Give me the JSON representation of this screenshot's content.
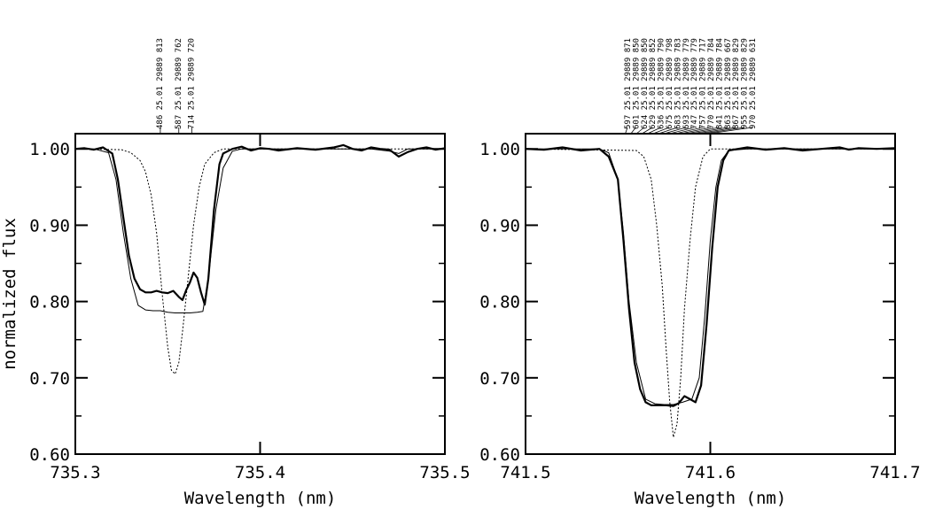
{
  "ylabel": "normalized flux",
  "chart_data": [
    {
      "type": "line",
      "xlabel": "Wavelength (nm)",
      "ylabel": "normalized flux",
      "xlim": [
        735.3,
        735.5
      ],
      "ylim": [
        0.6,
        1.02
      ],
      "xticks": [
        "735.3",
        "735.4",
        "735.5"
      ],
      "yticks": [
        "0.60",
        "0.70",
        "0.80",
        "0.90",
        "1.00"
      ],
      "series": [
        {
          "style": "thick",
          "x": [
            735.3,
            735.305,
            735.31,
            735.315,
            735.32,
            735.323,
            735.326,
            735.329,
            735.332,
            735.335,
            735.338,
            735.341,
            735.344,
            735.347,
            735.35,
            735.353,
            735.356,
            735.358,
            735.36,
            735.362,
            735.364,
            735.366,
            735.368,
            735.37,
            735.372,
            735.375,
            735.378,
            735.38,
            735.385,
            735.39,
            735.395,
            735.4,
            735.405,
            735.41,
            735.42,
            735.43,
            735.44,
            735.445,
            735.45,
            735.455,
            735.46,
            735.465,
            735.47,
            735.475,
            735.48,
            735.485,
            735.49,
            735.495,
            735.5
          ],
          "y": [
            1.0,
            1.001,
            0.999,
            1.002,
            0.994,
            0.96,
            0.91,
            0.86,
            0.83,
            0.816,
            0.812,
            0.812,
            0.814,
            0.812,
            0.811,
            0.814,
            0.806,
            0.802,
            0.815,
            0.825,
            0.838,
            0.831,
            0.812,
            0.796,
            0.83,
            0.92,
            0.98,
            0.994,
            1.0,
            1.003,
            0.998,
            1.001,
            1.0,
            0.998,
            1.001,
            0.999,
            1.002,
            1.005,
            1.0,
            0.998,
            1.002,
            1.0,
            0.999,
            0.99,
            0.996,
            1.0,
            1.002,
            0.999,
            1.001
          ]
        },
        {
          "style": "thin",
          "x": [
            735.3,
            735.31,
            735.318,
            735.322,
            735.326,
            735.33,
            735.334,
            735.338,
            735.342,
            735.346,
            735.35,
            735.354,
            735.358,
            735.362,
            735.366,
            735.369,
            735.372,
            735.376,
            735.38,
            735.385,
            735.39,
            735.4,
            735.43,
            735.46,
            735.47,
            735.475,
            735.48,
            735.49,
            735.5
          ],
          "y": [
            1.0,
            1.0,
            0.995,
            0.96,
            0.89,
            0.83,
            0.795,
            0.789,
            0.788,
            0.788,
            0.786,
            0.785,
            0.785,
            0.785,
            0.786,
            0.787,
            0.83,
            0.92,
            0.975,
            0.997,
            1.0,
            1.0,
            1.0,
            1.0,
            0.997,
            0.994,
            1.0,
            1.0,
            1.0
          ]
        },
        {
          "style": "dotted",
          "x": [
            735.3,
            735.325,
            735.33,
            735.335,
            735.338,
            735.341,
            735.344,
            735.347,
            735.35,
            735.352,
            735.354,
            735.356,
            735.358,
            735.361,
            735.364,
            735.367,
            735.37,
            735.375,
            735.38,
            735.5
          ],
          "y": [
            1.0,
            0.999,
            0.995,
            0.985,
            0.97,
            0.94,
            0.89,
            0.81,
            0.74,
            0.71,
            0.705,
            0.72,
            0.76,
            0.83,
            0.9,
            0.95,
            0.98,
            0.995,
            1.0,
            1.0
          ]
        }
      ],
      "line_ids": [
        {
          "x": 735.346,
          "label": "486  25.01  29889 813"
        },
        {
          "x": 735.356,
          "label": "587  25.01  29889 762"
        },
        {
          "x": 735.363,
          "label": "714  25.01  29889 720"
        }
      ]
    },
    {
      "type": "line",
      "xlabel": "Wavelength (nm)",
      "ylabel": "",
      "xlim": [
        741.5,
        741.7
      ],
      "ylim": [
        0.6,
        1.02
      ],
      "xticks": [
        "741.5",
        "741.6",
        "741.7"
      ],
      "yticks": [
        "0.60",
        "0.70",
        "0.80",
        "0.90",
        "1.00"
      ],
      "series": [
        {
          "style": "thick",
          "x": [
            741.5,
            741.51,
            741.52,
            741.53,
            741.54,
            741.545,
            741.55,
            741.553,
            741.556,
            741.559,
            741.562,
            741.565,
            741.568,
            741.572,
            741.576,
            741.58,
            741.583,
            741.586,
            741.589,
            741.592,
            741.595,
            741.598,
            741.601,
            741.604,
            741.607,
            741.61,
            741.615,
            741.62,
            741.63,
            741.64,
            741.65,
            741.66,
            741.67,
            741.675,
            741.68,
            741.69,
            741.7
          ],
          "y": [
            1.0,
            0.999,
            1.002,
            0.998,
            1.0,
            0.99,
            0.96,
            0.88,
            0.79,
            0.72,
            0.685,
            0.668,
            0.664,
            0.664,
            0.664,
            0.663,
            0.667,
            0.676,
            0.672,
            0.668,
            0.69,
            0.77,
            0.87,
            0.95,
            0.985,
            0.998,
            1.0,
            1.002,
            0.999,
            1.001,
            0.998,
            1.0,
            1.002,
            0.999,
            1.001,
            1.0,
            1.001
          ]
        },
        {
          "style": "thin",
          "x": [
            741.5,
            741.54,
            741.545,
            741.55,
            741.553,
            741.556,
            741.56,
            741.565,
            741.57,
            741.575,
            741.58,
            741.585,
            741.59,
            741.594,
            741.597,
            741.6,
            741.603,
            741.606,
            741.61,
            741.62,
            741.7
          ],
          "y": [
            1.0,
            1.0,
            0.995,
            0.96,
            0.89,
            0.8,
            0.72,
            0.672,
            0.666,
            0.665,
            0.665,
            0.668,
            0.672,
            0.7,
            0.78,
            0.88,
            0.95,
            0.985,
            0.998,
            1.0,
            1.0
          ]
        },
        {
          "style": "dotted",
          "x": [
            741.5,
            741.56,
            741.564,
            741.568,
            741.571,
            741.574,
            741.576,
            741.578,
            741.58,
            741.582,
            741.584,
            741.586,
            741.589,
            741.592,
            741.596,
            741.6,
            741.7
          ],
          "y": [
            1.0,
            0.998,
            0.99,
            0.96,
            0.9,
            0.82,
            0.74,
            0.67,
            0.622,
            0.64,
            0.7,
            0.79,
            0.88,
            0.95,
            0.99,
            1.0,
            1.0
          ]
        }
      ],
      "line_ids": [
        {
          "x": 741.554,
          "label": "597  25.01  29889 871"
        },
        {
          "x": 741.557,
          "label": "601  25.01  29889 850"
        },
        {
          "x": 741.56,
          "label": "624  25.01  29889 850"
        },
        {
          "x": 741.563,
          "label": "629  25.01  29889 852"
        },
        {
          "x": 741.566,
          "label": "636  25.01  29889 790"
        },
        {
          "x": 741.569,
          "label": "675  25.01  29889 798"
        },
        {
          "x": 741.572,
          "label": "683  25.01  29889 783"
        },
        {
          "x": 741.575,
          "label": "693  25.01  29889 779"
        },
        {
          "x": 741.578,
          "label": "747  25.01  29889 779"
        },
        {
          "x": 741.581,
          "label": "757  25.01  29889 717"
        },
        {
          "x": 741.584,
          "label": "770  25.01  29889 784"
        },
        {
          "x": 741.587,
          "label": "841  25.01  29889 784"
        },
        {
          "x": 741.59,
          "label": "863  25.01  29889 667"
        },
        {
          "x": 741.593,
          "label": "867  25.01  29889 829"
        },
        {
          "x": 741.596,
          "label": "955  25.01  29889 829"
        },
        {
          "x": 741.599,
          "label": "970  25.01  29889 631"
        }
      ]
    }
  ]
}
